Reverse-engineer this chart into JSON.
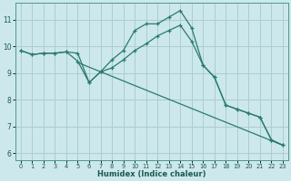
{
  "xlabel": "Humidex (Indice chaleur)",
  "bg_color": "#cce8ec",
  "grid_color": "#aacdd4",
  "line_color": "#2a7a70",
  "xlim": [
    -0.5,
    23.5
  ],
  "ylim": [
    5.75,
    11.65
  ],
  "xticks": [
    0,
    1,
    2,
    3,
    4,
    5,
    6,
    7,
    8,
    9,
    10,
    11,
    12,
    13,
    14,
    15,
    16,
    17,
    18,
    19,
    20,
    21,
    22,
    23
  ],
  "yticks": [
    6,
    7,
    8,
    9,
    10,
    11
  ],
  "line1_x": [
    0,
    1,
    2,
    3,
    4,
    5,
    6,
    7,
    8,
    9,
    10,
    11,
    12,
    13,
    14,
    15,
    16,
    17,
    18,
    19,
    20,
    21,
    22,
    23
  ],
  "line1_y": [
    9.85,
    9.7,
    9.75,
    9.75,
    9.8,
    9.75,
    8.65,
    9.05,
    9.5,
    9.85,
    10.6,
    10.85,
    10.85,
    11.1,
    11.35,
    10.7,
    9.3,
    8.85,
    7.8,
    7.65,
    7.5,
    7.35,
    6.5,
    6.3
  ],
  "line2_x": [
    0,
    1,
    2,
    3,
    4,
    5,
    6,
    7,
    8,
    9,
    10,
    11,
    12,
    13,
    14,
    15,
    16,
    17,
    18,
    19,
    20,
    21,
    22,
    23
  ],
  "line2_y": [
    9.85,
    9.7,
    9.75,
    9.75,
    9.8,
    9.45,
    8.65,
    9.05,
    9.2,
    9.5,
    9.85,
    10.1,
    10.4,
    10.6,
    10.8,
    10.2,
    9.3,
    8.85,
    7.8,
    7.65,
    7.5,
    7.35,
    6.5,
    6.3
  ],
  "line3_x": [
    5,
    23
  ],
  "line3_y": [
    9.4,
    6.3
  ]
}
